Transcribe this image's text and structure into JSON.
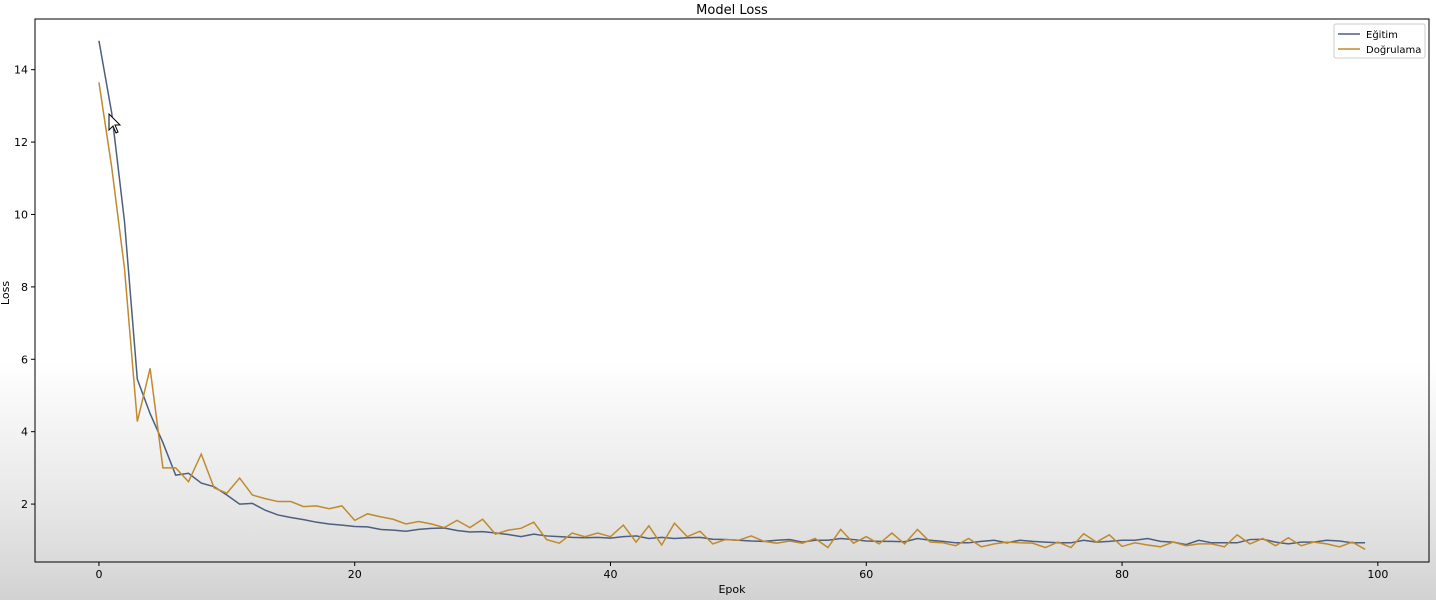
{
  "chart_data": {
    "type": "line",
    "title": "Model Loss",
    "xlabel": "Epok",
    "ylabel": "Loss",
    "xlim": [
      -5,
      104
    ],
    "ylim": [
      0.4,
      15.4
    ],
    "xticks": [
      0,
      20,
      40,
      60,
      80,
      100
    ],
    "yticks": [
      2,
      4,
      6,
      8,
      10,
      12,
      14
    ],
    "grid": false,
    "legend_position": "top-right",
    "series": [
      {
        "name": "Eğitim",
        "color": "#4d5f7f",
        "values": [
          14.8,
          12.8,
          9.8,
          5.45,
          4.5,
          3.7,
          2.8,
          2.85,
          2.58,
          2.48,
          2.25,
          2.0,
          2.02,
          1.83,
          1.7,
          1.63,
          1.57,
          1.5,
          1.45,
          1.42,
          1.38,
          1.37,
          1.3,
          1.28,
          1.25,
          1.3,
          1.33,
          1.34,
          1.27,
          1.23,
          1.24,
          1.2,
          1.16,
          1.1,
          1.17,
          1.12,
          1.1,
          1.08,
          1.07,
          1.08,
          1.06,
          1.1,
          1.12,
          1.05,
          1.08,
          1.05,
          1.07,
          1.08,
          1.03,
          1.02,
          1.0,
          0.98,
          0.97,
          1.0,
          1.02,
          0.95,
          1.0,
          1.0,
          1.05,
          1.02,
          0.98,
          0.97,
          0.97,
          0.96,
          1.05,
          1.0,
          0.97,
          0.93,
          0.93,
          0.97,
          1.0,
          0.93,
          1.0,
          0.97,
          0.95,
          0.93,
          0.93,
          1.0,
          0.95,
          0.97,
          1.0,
          1.0,
          1.05,
          0.97,
          0.95,
          0.88,
          1.0,
          0.93,
          0.93,
          0.93,
          1.02,
          1.03,
          0.95,
          0.9,
          0.95,
          0.95,
          1.0,
          0.98,
          0.93,
          0.93
        ]
      },
      {
        "name": "Doğrulama",
        "color": "#c08a2e",
        "values": [
          13.65,
          11.3,
          8.5,
          4.28,
          5.75,
          3.0,
          3.0,
          2.62,
          3.38,
          2.45,
          2.3,
          2.72,
          2.25,
          2.15,
          2.07,
          2.07,
          1.93,
          1.95,
          1.87,
          1.95,
          1.55,
          1.73,
          1.65,
          1.58,
          1.45,
          1.52,
          1.45,
          1.35,
          1.55,
          1.35,
          1.58,
          1.17,
          1.28,
          1.33,
          1.5,
          1.02,
          0.92,
          1.2,
          1.1,
          1.2,
          1.1,
          1.42,
          0.95,
          1.4,
          0.87,
          1.47,
          1.1,
          1.25,
          0.9,
          1.02,
          1.0,
          1.12,
          0.97,
          0.92,
          0.98,
          0.92,
          1.05,
          0.8,
          1.3,
          0.92,
          1.1,
          0.9,
          1.2,
          0.9,
          1.3,
          0.95,
          0.93,
          0.85,
          1.05,
          0.82,
          0.9,
          0.95,
          0.93,
          0.92,
          0.8,
          0.95,
          0.8,
          1.18,
          0.95,
          1.15,
          0.83,
          0.93,
          0.87,
          0.82,
          0.95,
          0.85,
          0.9,
          0.9,
          0.82,
          1.15,
          0.9,
          1.05,
          0.85,
          1.07,
          0.85,
          0.95,
          0.9,
          0.82,
          0.95,
          0.75
        ]
      }
    ]
  }
}
